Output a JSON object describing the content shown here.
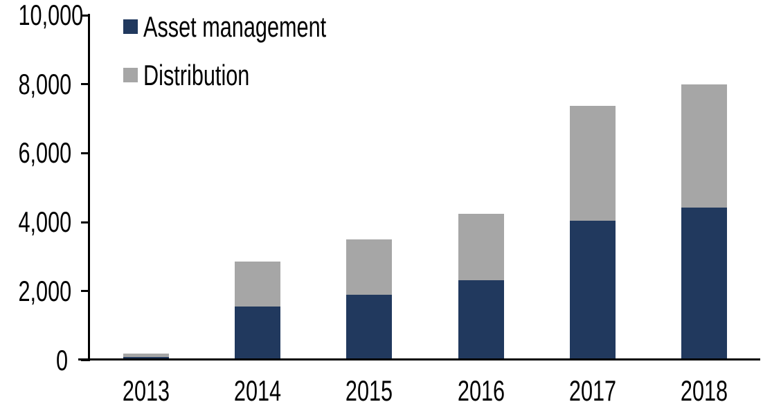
{
  "chart_data": {
    "type": "bar",
    "stacked": true,
    "title": "",
    "xlabel": "",
    "ylabel": "",
    "categories": [
      "2013",
      "2014",
      "2015",
      "2016",
      "2017",
      "2018"
    ],
    "series": [
      {
        "name": "Asset management",
        "color": "#21395E",
        "values": [
          100,
          1550,
          1900,
          2320,
          4050,
          4420
        ]
      },
      {
        "name": "Distribution",
        "color": "#A6A6A6",
        "values": [
          100,
          1300,
          1600,
          1930,
          3330,
          3580
        ]
      }
    ],
    "ylim": [
      0,
      10000
    ],
    "ytick_interval": 2000,
    "ytick_labels": [
      "0",
      "2,000",
      "4,000",
      "6,000",
      "8,000",
      "10,000"
    ],
    "grid": false,
    "legend_position": "top-left",
    "axis_color": "#000000",
    "background_color": "#FFFFFF"
  }
}
